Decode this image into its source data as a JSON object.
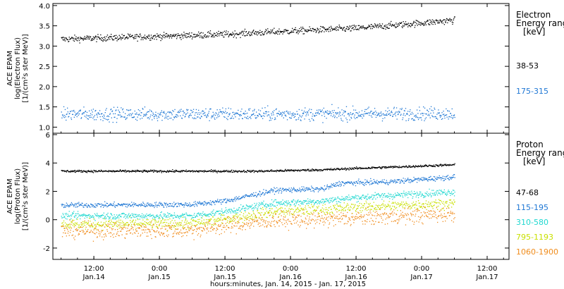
{
  "chart_data": {
    "type": "scatter",
    "x_axis": {
      "label": "hours:minutes, Jan. 14, 2015 - Jan. 17, 2015",
      "range": [
        "2015-01-14T04:30",
        "2015-01-17T16:00"
      ],
      "ticks": [
        {
          "time": "2015-01-14T12:00",
          "line1": "12:00",
          "line2": "Jan.14"
        },
        {
          "time": "2015-01-15T00:00",
          "line1": "0:00",
          "line2": "Jan.15"
        },
        {
          "time": "2015-01-15T12:00",
          "line1": "12:00",
          "line2": "Jan.15"
        },
        {
          "time": "2015-01-16T00:00",
          "line1": "0:00",
          "line2": "Jan.16"
        },
        {
          "time": "2015-01-16T12:00",
          "line1": "12:00",
          "line2": "Jan.16"
        },
        {
          "time": "2015-01-17T00:00",
          "line1": "0:00",
          "line2": "Jan.17"
        },
        {
          "time": "2015-01-17T12:00",
          "line1": "12:00",
          "line2": "Jan.17"
        }
      ]
    },
    "panels": [
      {
        "id": "electron",
        "ylabel_lines": [
          "ACE EPAM",
          "log(Electron Flux)",
          "[1/(cm²s ster MeV)]"
        ],
        "ylim": [
          0.85,
          4.05
        ],
        "yticks": [
          "4.0",
          "3.5",
          "3.0",
          "2.5",
          "2.0",
          "1.5",
          "1.0"
        ],
        "ytick_values": [
          4.0,
          3.5,
          3.0,
          2.5,
          2.0,
          1.5,
          1.0
        ],
        "legend_title": [
          "Electron",
          "Energy ranges",
          "[keV]"
        ],
        "series": [
          {
            "name": "38-53",
            "color": "#000000",
            "noise": 0.04,
            "values": [
              [
                "2015-01-14T06:00",
                3.18
              ],
              [
                "2015-01-15T00:00",
                3.25
              ],
              [
                "2015-01-15T12:00",
                3.3
              ],
              [
                "2015-01-16T00:00",
                3.38
              ],
              [
                "2015-01-16T12:00",
                3.45
              ],
              [
                "2015-01-17T00:00",
                3.58
              ],
              [
                "2015-01-17T06:00",
                3.65
              ]
            ]
          },
          {
            "name": "175-315",
            "color": "#1f77d4",
            "noise": 0.08,
            "values": [
              [
                "2015-01-14T06:00",
                1.33
              ],
              [
                "2015-01-15T00:00",
                1.33
              ],
              [
                "2015-01-16T00:00",
                1.33
              ],
              [
                "2015-01-17T06:00",
                1.35
              ]
            ]
          }
        ]
      },
      {
        "id": "proton",
        "ylabel_lines": [
          "ACE EPAM",
          "log(Proton Flux)",
          "[1/(cm²s ster MeV)]"
        ],
        "ylim": [
          -2.8,
          6.1
        ],
        "yticks": [
          "6",
          "4",
          "2",
          "0",
          "-2"
        ],
        "ytick_values": [
          6,
          4,
          2,
          0,
          -2
        ],
        "legend_title": [
          "Proton",
          "Energy ranges",
          "[keV]"
        ],
        "series": [
          {
            "name": "47-68",
            "color": "#000000",
            "noise": 0.04,
            "values": [
              [
                "2015-01-14T06:00",
                3.45
              ],
              [
                "2015-01-15T18:00",
                3.45
              ],
              [
                "2015-01-16T06:00",
                3.55
              ],
              [
                "2015-01-16T12:00",
                3.65
              ],
              [
                "2015-01-17T06:00",
                3.9
              ]
            ]
          },
          {
            "name": "115-195",
            "color": "#1f77d4",
            "noise": 0.09,
            "values": [
              [
                "2015-01-14T06:00",
                1.05
              ],
              [
                "2015-01-15T06:00",
                1.1
              ],
              [
                "2015-01-15T12:00",
                1.35
              ],
              [
                "2015-01-15T21:00",
                2.1
              ],
              [
                "2015-01-16T06:00",
                2.2
              ],
              [
                "2015-01-16T09:00",
                2.6
              ],
              [
                "2015-01-16T18:00",
                2.7
              ],
              [
                "2015-01-17T06:00",
                3.05
              ]
            ]
          },
          {
            "name": "310-580",
            "color": "#20d8d0",
            "noise": 0.12,
            "values": [
              [
                "2015-01-14T06:00",
                0.3
              ],
              [
                "2015-01-15T06:00",
                0.3
              ],
              [
                "2015-01-15T12:00",
                0.6
              ],
              [
                "2015-01-15T21:00",
                1.2
              ],
              [
                "2015-01-16T06:00",
                1.35
              ],
              [
                "2015-01-16T12:00",
                1.6
              ],
              [
                "2015-01-17T06:00",
                2.0
              ]
            ]
          },
          {
            "name": "795-1193",
            "color": "#c8e000",
            "noise": 0.18,
            "values": [
              [
                "2015-01-14T06:00",
                -0.3
              ],
              [
                "2015-01-15T06:00",
                -0.25
              ],
              [
                "2015-01-15T12:00",
                0.05
              ],
              [
                "2015-01-15T21:00",
                0.6
              ],
              [
                "2015-01-16T06:00",
                0.75
              ],
              [
                "2015-01-16T12:00",
                0.9
              ],
              [
                "2015-01-17T06:00",
                1.2
              ]
            ]
          },
          {
            "name": "1060-1900",
            "color": "#f08c1c",
            "noise": 0.28,
            "values": [
              [
                "2015-01-14T06:00",
                -0.75
              ],
              [
                "2015-01-15T06:00",
                -0.7
              ],
              [
                "2015-01-15T12:00",
                -0.4
              ],
              [
                "2015-01-15T21:00",
                0.0
              ],
              [
                "2015-01-16T06:00",
                0.05
              ],
              [
                "2015-01-16T12:00",
                0.15
              ],
              [
                "2015-01-17T06:00",
                0.45
              ]
            ]
          }
        ]
      }
    ]
  }
}
